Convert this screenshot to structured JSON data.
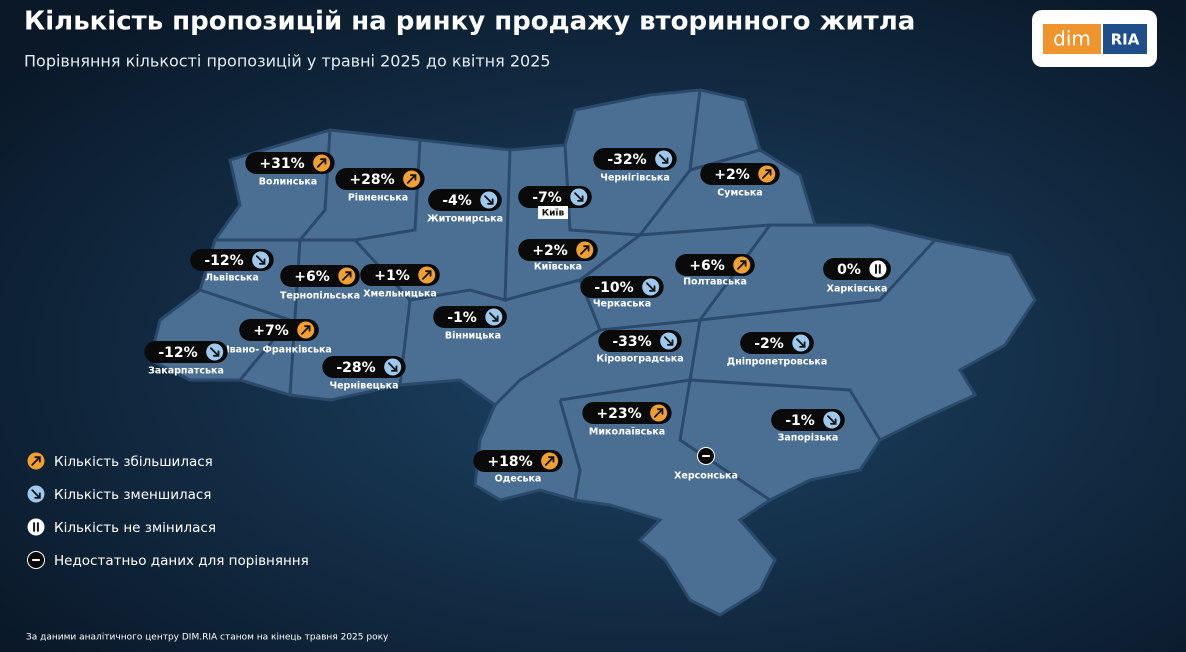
{
  "header": {
    "title": "Кількість пропозицій на ринку продажу вторинного житла",
    "subtitle": "Порівняння кількості пропозицій у травні 2025 до квітня 2025"
  },
  "logo": {
    "left": "dim",
    "right": "RIA"
  },
  "regions": [
    {
      "label": "Волинська",
      "value": "+31%",
      "status": "up"
    },
    {
      "label": "Рівненська",
      "value": "+28%",
      "status": "up"
    },
    {
      "label": "Житомирська",
      "value": "-4%",
      "status": "down"
    },
    {
      "label": "Київ",
      "value": "-7%",
      "status": "down"
    },
    {
      "label": "Чернігівська",
      "value": "-32%",
      "status": "down"
    },
    {
      "label": "Сумська",
      "value": "+2%",
      "status": "up"
    },
    {
      "label": "Київська",
      "value": "+2%",
      "status": "up"
    },
    {
      "label": "Львівська",
      "value": "-12%",
      "status": "down"
    },
    {
      "label": "Тернопільська",
      "value": "+6%",
      "status": "up"
    },
    {
      "label": "Хмельницька",
      "value": "+1%",
      "status": "up"
    },
    {
      "label": "Полтавська",
      "value": "+6%",
      "status": "up"
    },
    {
      "label": "Харківська",
      "value": "0%",
      "status": "same"
    },
    {
      "label": "Черкаська",
      "value": "-10%",
      "status": "down"
    },
    {
      "label": "Вінницька",
      "value": "-1%",
      "status": "down"
    },
    {
      "label": "Івано- Франківська",
      "value": "+7%",
      "status": "up"
    },
    {
      "label": "Закарпатська",
      "value": "-12%",
      "status": "down"
    },
    {
      "label": "Кіровоградська",
      "value": "-33%",
      "status": "down"
    },
    {
      "label": "Дніпропетровська",
      "value": "-2%",
      "status": "down"
    },
    {
      "label": "Чернівецька",
      "value": "-28%",
      "status": "down"
    },
    {
      "label": "Миколаївська",
      "value": "+23%",
      "status": "up"
    },
    {
      "label": "Запорізька",
      "value": "-1%",
      "status": "down"
    },
    {
      "label": "Одеська",
      "value": "+18%",
      "status": "up"
    },
    {
      "label": "Херсонська",
      "status": "nodata"
    }
  ],
  "legend": [
    {
      "status": "up",
      "text": "Кількість збільшилася"
    },
    {
      "status": "down",
      "text": "Кількість зменшилася"
    },
    {
      "status": "same",
      "text": "Кількість не змінилася"
    },
    {
      "status": "nodata",
      "text": "Недостатньо даних для порівняння"
    }
  ],
  "footnote": "За даними аналітичного центру DIM.RIA станом на кінець травня 2025 року"
}
